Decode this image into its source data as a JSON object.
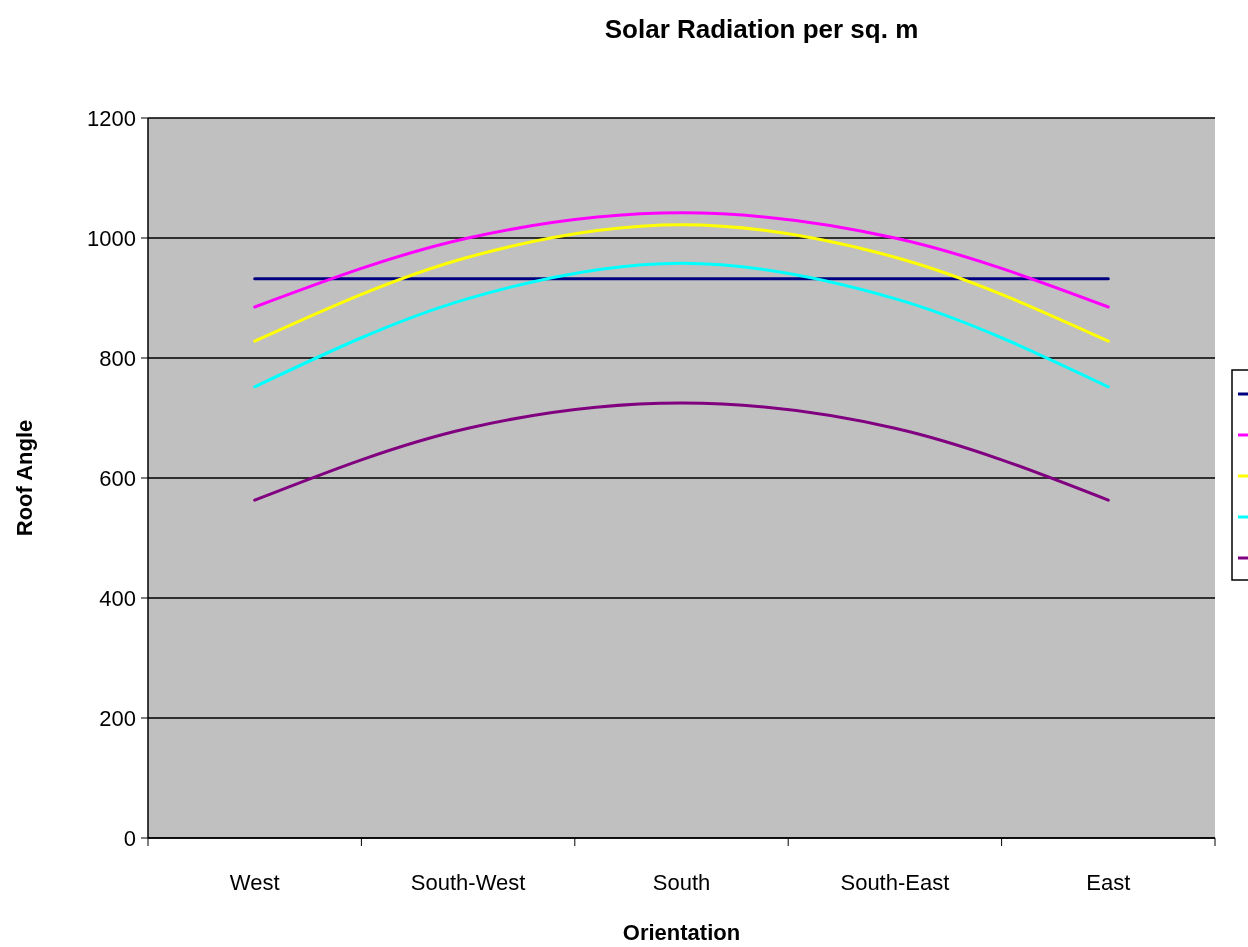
{
  "chart_data": {
    "type": "line",
    "title": "Solar Radiation per sq. m",
    "xlabel": "Orientation",
    "ylabel": "Roof Angle",
    "categories": [
      "West",
      "South-West",
      "South",
      "South-East",
      "East"
    ],
    "series": [
      {
        "color": "#000080",
        "values": [
          932,
          932,
          932,
          932,
          932
        ]
      },
      {
        "color": "#ff00ff",
        "values": [
          885,
          1000,
          1042,
          1000,
          885
        ]
      },
      {
        "color": "#ffff00",
        "values": [
          828,
          968,
          1022,
          968,
          828
        ]
      },
      {
        "color": "#00ffff",
        "values": [
          752,
          899,
          958,
          899,
          752
        ]
      },
      {
        "color": "#800080",
        "values": [
          563,
          683,
          725,
          683,
          563
        ]
      }
    ],
    "ylim": [
      0,
      1200
    ],
    "yticks": [
      0,
      200,
      400,
      600,
      800,
      1000,
      1200
    ],
    "grid": "y",
    "marker": "none",
    "line_style": "solid"
  }
}
